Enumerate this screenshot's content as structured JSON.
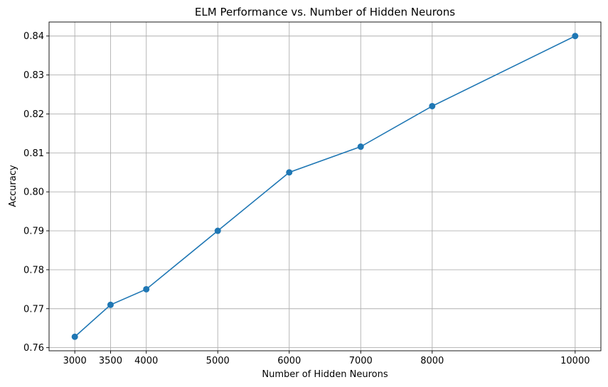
{
  "chart_data": {
    "type": "line",
    "title": "ELM Performance vs. Number of Hidden Neurons",
    "xlabel": "Number of Hidden Neurons",
    "ylabel": "Accuracy",
    "x": [
      3000,
      3500,
      4000,
      5000,
      6000,
      7000,
      8000,
      10000
    ],
    "series": [
      {
        "values": [
          0.7628,
          0.771,
          0.775,
          0.79,
          0.805,
          0.8116,
          0.822,
          0.84
        ]
      }
    ],
    "xticks": [
      3000,
      3500,
      4000,
      5000,
      6000,
      7000,
      8000,
      10000
    ],
    "yticks": [
      0.76,
      0.77,
      0.78,
      0.79,
      0.8,
      0.81,
      0.82,
      0.83,
      0.84
    ],
    "ytick_labels": [
      "0.76",
      "0.77",
      "0.78",
      "0.79",
      "0.80",
      "0.81",
      "0.82",
      "0.83",
      "0.84"
    ],
    "xlim": [
      2640,
      10360
    ],
    "ylim": [
      0.7592,
      0.8436
    ],
    "grid": true,
    "marker": "circle",
    "color": "#1f77b4"
  }
}
